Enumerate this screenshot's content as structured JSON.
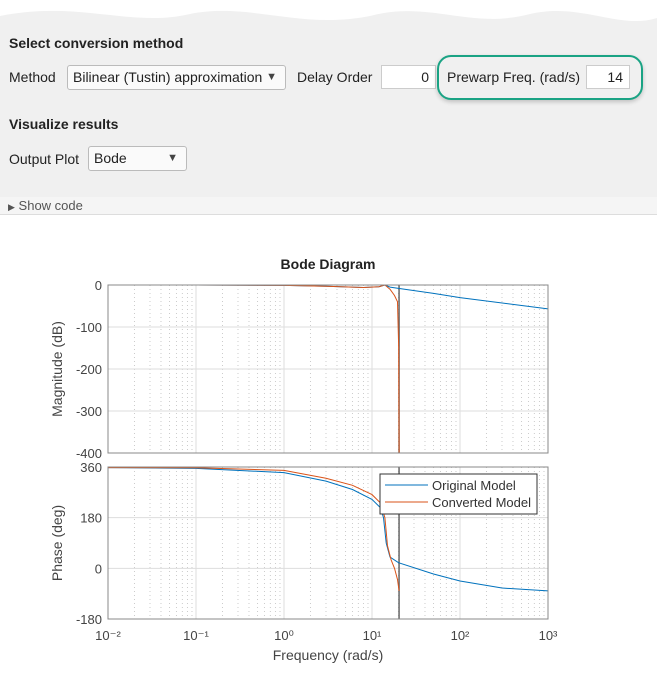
{
  "panel": {
    "section1": "Select conversion method",
    "method_label": "Method",
    "method_value": "Bilinear (Tustin) approximation",
    "delay_label": "Delay Order",
    "delay_value": "0",
    "prewarp_label": "Prewarp Freq. (rad/s)",
    "prewarp_value": "14",
    "section2": "Visualize results",
    "output_label": "Output Plot",
    "output_value": "Bode",
    "show_code": "Show code",
    "highlight_color": "#1aa384"
  },
  "chart_data": {
    "type": "line",
    "title": "Bode Diagram",
    "xlabel": "Frequency  (rad/s)",
    "xscale": "log",
    "xlim": [
      0.01,
      1000
    ],
    "xticks": [
      "10⁻²",
      "10⁻¹",
      "10⁰",
      "10¹",
      "10²",
      "10³"
    ],
    "grid": true,
    "legend": "top-right",
    "vline": 20.3,
    "magnitude": {
      "ylabel": "Magnitude (dB)",
      "ylim": [
        -400,
        0
      ],
      "yticks": [
        "0",
        "-100",
        "-200",
        "-300",
        "-400"
      ],
      "series": [
        {
          "name": "Original Model",
          "color": "#0072bd",
          "x": [
            0.01,
            0.1,
            1,
            3,
            8,
            12,
            14,
            16,
            20,
            50,
            100,
            1000
          ],
          "y": [
            0,
            0,
            -1,
            -3,
            -6,
            -4,
            0,
            -5,
            -8,
            -20,
            -30,
            -57
          ]
        },
        {
          "name": "Converted Model",
          "color": "#d95319",
          "x": [
            0.01,
            0.1,
            1,
            3,
            8,
            12,
            14,
            16,
            18,
            19.5,
            20.1,
            20.3
          ],
          "y": [
            0,
            0,
            -1,
            -3,
            -6,
            -4,
            0,
            -10,
            -25,
            -40,
            -150,
            -400
          ]
        }
      ]
    },
    "phase": {
      "ylabel": "Phase (deg)",
      "ylim": [
        -180,
        360
      ],
      "yticks": [
        "360",
        "180",
        "0",
        "-180"
      ],
      "series": [
        {
          "name": "Original Model",
          "color": "#0072bd",
          "x": [
            0.01,
            0.1,
            1,
            3,
            6,
            10,
            12.5,
            13.5,
            14.5,
            16,
            20,
            50,
            100,
            300,
            1000
          ],
          "y": [
            358,
            355,
            340,
            310,
            280,
            245,
            215,
            180,
            90,
            40,
            20,
            -20,
            -45,
            -70,
            -80
          ]
        },
        {
          "name": "Converted Model",
          "color": "#d95319",
          "x": [
            0.01,
            0.1,
            1,
            3,
            6,
            10,
            12.5,
            14,
            15,
            16.5,
            18,
            19.5,
            20.3
          ],
          "y": [
            358,
            357,
            348,
            320,
            295,
            262,
            232,
            180,
            80,
            30,
            0,
            -40,
            -80
          ]
        }
      ]
    }
  }
}
